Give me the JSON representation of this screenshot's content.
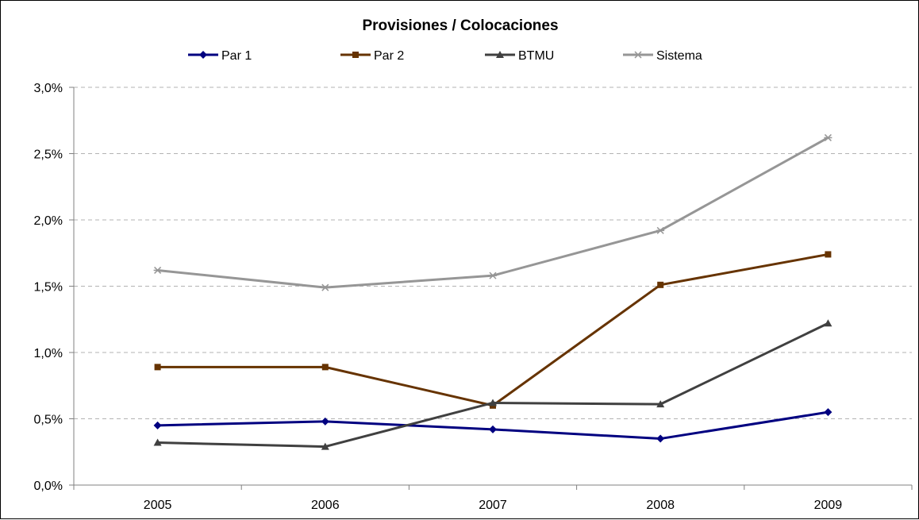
{
  "chart_data": {
    "type": "line",
    "title": "Provisiones / Colocaciones",
    "categories": [
      "2005",
      "2006",
      "2007",
      "2008",
      "2009"
    ],
    "ylim": [
      0,
      3.0
    ],
    "yticks": [
      "0,0%",
      "0,5%",
      "1,0%",
      "1,5%",
      "2,0%",
      "2,5%",
      "3,0%"
    ],
    "ytick_values": [
      0,
      0.5,
      1.0,
      1.5,
      2.0,
      2.5,
      3.0
    ],
    "grid": true,
    "legend_position": "top",
    "series": [
      {
        "name": "Par 1",
        "values": [
          0.45,
          0.48,
          0.42,
          0.35,
          0.55
        ],
        "color": "#000080",
        "marker": "diamond"
      },
      {
        "name": "Par 2",
        "values": [
          0.89,
          0.89,
          0.6,
          1.51,
          1.74
        ],
        "color": "#663300",
        "marker": "square"
      },
      {
        "name": "BTMU",
        "values": [
          0.32,
          0.29,
          0.62,
          0.61,
          1.22
        ],
        "color": "#404040",
        "marker": "triangle"
      },
      {
        "name": "Sistema",
        "values": [
          1.62,
          1.49,
          1.58,
          1.92,
          2.62
        ],
        "color": "#969696",
        "marker": "star"
      }
    ]
  }
}
